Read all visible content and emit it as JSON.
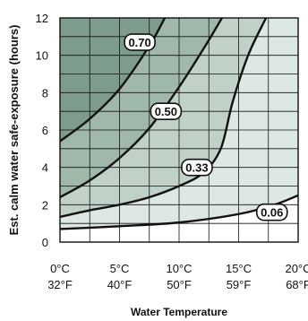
{
  "chart_data": {
    "type": "line",
    "xlabel": "Water Temperature",
    "ylabel": "Est. calm water safe-exposure (hours)",
    "xlim": [
      0,
      20
    ],
    "ylim": [
      0,
      12
    ],
    "x_ticks": [
      {
        "value": 0,
        "c": "0°C",
        "f": "32°F"
      },
      {
        "value": 5,
        "c": "5°C",
        "f": "40°F"
      },
      {
        "value": 10,
        "c": "10°C",
        "f": "50°F"
      },
      {
        "value": 15,
        "c": "15°C",
        "f": "59°F"
      },
      {
        "value": 20,
        "c": "20°C",
        "f": "68°F"
      }
    ],
    "y_ticks": [
      "0",
      "2",
      "4",
      "6",
      "8",
      "10",
      "12"
    ],
    "grid": true,
    "series": [
      {
        "name": "0.70",
        "label_x": 6.7,
        "label_y": 10.7,
        "points": [
          [
            0,
            5.4
          ],
          [
            2.5,
            6.6
          ],
          [
            5,
            8.2
          ],
          [
            7.5,
            10.5
          ],
          [
            8.8,
            12
          ]
        ]
      },
      {
        "name": "0.50",
        "label_x": 8.9,
        "label_y": 7.0,
        "points": [
          [
            0,
            2.4
          ],
          [
            2.5,
            3.3
          ],
          [
            5,
            4.5
          ],
          [
            7.5,
            6.1
          ],
          [
            10,
            8.3
          ],
          [
            12.2,
            10.5
          ],
          [
            13.6,
            12
          ]
        ]
      },
      {
        "name": "0.33",
        "label_x": 11.5,
        "label_y": 4.0,
        "points": [
          [
            0,
            1.35
          ],
          [
            2.5,
            1.7
          ],
          [
            5,
            2.0
          ],
          [
            7.5,
            2.4
          ],
          [
            10,
            3.0
          ],
          [
            12,
            3.7
          ],
          [
            13.5,
            5.0
          ],
          [
            14.5,
            7.5
          ],
          [
            15.8,
            10.0
          ],
          [
            17.3,
            12
          ]
        ]
      },
      {
        "name": "0.06",
        "label_x": 17.8,
        "label_y": 1.6,
        "points": [
          [
            0,
            0.7
          ],
          [
            5,
            0.85
          ],
          [
            10,
            1.05
          ],
          [
            15,
            1.5
          ],
          [
            18,
            2.0
          ],
          [
            20,
            2.5
          ]
        ]
      }
    ],
    "colors": {
      "band_top": "#7d9c8c",
      "band_2": "#9fb8aa",
      "band_3": "#c0d2c8",
      "band_4": "#dde8e2",
      "band_bottom": "#ffffff",
      "line": "#111111",
      "grid": "#111111"
    }
  }
}
